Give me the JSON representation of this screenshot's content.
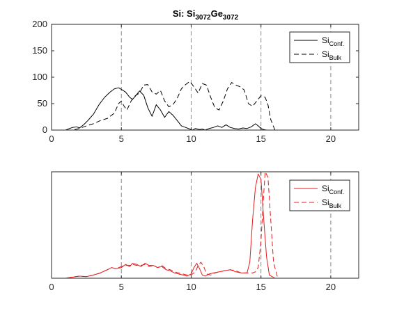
{
  "title": {
    "prefix": "Si: Si",
    "sub1": "3072",
    "mid": "Ge",
    "sub2": "3072"
  },
  "chart_data": [
    {
      "type": "line",
      "xlim": [
        0,
        22
      ],
      "ylim": [
        0,
        200
      ],
      "xticks": [
        0,
        5,
        10,
        15,
        20
      ],
      "yticks": [
        0,
        50,
        100,
        150,
        200
      ],
      "xtick_labels": [
        "0",
        "5",
        "10",
        "15",
        "20"
      ],
      "ytick_labels": [
        "0",
        "50",
        "100",
        "150",
        "200"
      ],
      "y_tick_labels_visible": true,
      "vlines": [
        5,
        10,
        15,
        20
      ],
      "legend_position": "top-right",
      "series": [
        {
          "name_main": "Si",
          "name_sub": "Conf.",
          "style": "solid",
          "color": "#000000",
          "x": [
            0,
            1.0,
            1.2,
            1.5,
            1.8,
            2.0,
            2.3,
            2.6,
            3.0,
            3.4,
            3.8,
            4.2,
            4.5,
            4.8,
            5.0,
            5.3,
            5.6,
            5.8,
            6.0,
            6.3,
            6.6,
            6.9,
            7.2,
            7.5,
            7.8,
            8.1,
            8.4,
            8.7,
            9.0,
            9.3,
            9.6,
            9.9,
            10.1,
            10.3,
            10.6,
            10.8,
            11.0,
            11.3,
            11.6,
            11.9,
            12.2,
            12.5,
            12.8,
            13.1,
            13.4,
            13.7,
            14.0,
            14.3,
            14.6,
            14.8,
            15.0,
            15.2,
            15.4,
            16.0,
            22
          ],
          "y": [
            0,
            0,
            2,
            5,
            6,
            4,
            10,
            18,
            30,
            48,
            62,
            72,
            78,
            80,
            77,
            72,
            62,
            58,
            64,
            74,
            66,
            42,
            26,
            48,
            38,
            24,
            35,
            28,
            18,
            8,
            5,
            2,
            0,
            3,
            1,
            2,
            0,
            3,
            5,
            8,
            5,
            10,
            5,
            3,
            2,
            4,
            3,
            6,
            12,
            8,
            3,
            1,
            0,
            0,
            0
          ]
        },
        {
          "name_main": "Si",
          "name_sub": "Bulk",
          "style": "dashed",
          "color": "#000000",
          "x": [
            0,
            1.5,
            2.0,
            2.5,
            3.0,
            3.5,
            4.0,
            4.5,
            4.8,
            5.0,
            5.2,
            5.4,
            5.7,
            6.0,
            6.3,
            6.6,
            6.9,
            7.2,
            7.5,
            7.8,
            8.1,
            8.4,
            8.7,
            9.0,
            9.3,
            9.6,
            9.9,
            10.2,
            10.5,
            10.8,
            11.1,
            11.4,
            11.7,
            12.0,
            12.3,
            12.6,
            12.9,
            13.2,
            13.5,
            13.8,
            14.1,
            14.4,
            14.7,
            15.0,
            15.3,
            15.5,
            15.7,
            16.0,
            22
          ],
          "y": [
            0,
            0,
            3,
            8,
            12,
            18,
            22,
            32,
            50,
            55,
            45,
            38,
            55,
            65,
            70,
            85,
            86,
            72,
            68,
            75,
            55,
            44,
            48,
            60,
            78,
            86,
            92,
            82,
            70,
            88,
            85,
            62,
            42,
            38,
            55,
            78,
            90,
            85,
            82,
            76,
            50,
            45,
            55,
            65,
            62,
            48,
            20,
            0,
            0
          ]
        }
      ]
    },
    {
      "type": "line",
      "xlim": [
        0,
        22
      ],
      "ylim": [
        0,
        1
      ],
      "xticks": [
        0,
        5,
        10,
        15,
        20
      ],
      "xtick_labels": [
        "0",
        "5",
        "10",
        "15",
        "20"
      ],
      "y_tick_labels_visible": false,
      "vlines": [
        5,
        10,
        15,
        20
      ],
      "legend_position": "top-right",
      "series": [
        {
          "name_main": "Si",
          "name_sub": "Conf.",
          "style": "solid",
          "color": "#e41a1c",
          "x": [
            0,
            1.0,
            1.5,
            2.0,
            2.5,
            3.0,
            3.5,
            4.0,
            4.3,
            4.6,
            5.0,
            5.3,
            5.6,
            5.8,
            6.1,
            6.4,
            6.7,
            7.0,
            7.3,
            7.6,
            7.9,
            8.2,
            8.5,
            8.8,
            9.1,
            9.4,
            9.7,
            10.0,
            10.2,
            10.4,
            10.6,
            10.8,
            11.0,
            11.3,
            11.6,
            12.0,
            12.4,
            12.8,
            13.2,
            13.6,
            14.0,
            14.2,
            14.4,
            14.6,
            14.8,
            15.0,
            15.2,
            15.4,
            15.6,
            16.0,
            22
          ],
          "y": [
            0,
            0,
            0.01,
            0.02,
            0.015,
            0.03,
            0.05,
            0.08,
            0.1,
            0.09,
            0.1,
            0.13,
            0.11,
            0.14,
            0.13,
            0.11,
            0.14,
            0.12,
            0.12,
            0.1,
            0.11,
            0.08,
            0.07,
            0.05,
            0.04,
            0.03,
            0.02,
            0.04,
            0.1,
            0.14,
            0.09,
            0.03,
            0.02,
            0.04,
            0.05,
            0.06,
            0.07,
            0.08,
            0.06,
            0.05,
            0.05,
            0.15,
            0.55,
            0.85,
            0.98,
            0.93,
            0.55,
            0.2,
            0.03,
            0,
            0
          ]
        },
        {
          "name_main": "Si",
          "name_sub": "Bulk",
          "style": "dashed",
          "color": "#e41a1c",
          "x": [
            0,
            1.0,
            1.5,
            2.0,
            2.5,
            3.0,
            3.5,
            4.0,
            4.3,
            4.6,
            5.0,
            5.3,
            5.6,
            5.8,
            6.1,
            6.4,
            6.7,
            7.0,
            7.3,
            7.6,
            7.9,
            8.2,
            8.5,
            8.8,
            9.1,
            9.4,
            9.7,
            10.0,
            10.3,
            10.5,
            10.7,
            10.9,
            11.1,
            11.4,
            11.7,
            12.0,
            12.4,
            12.8,
            13.2,
            13.6,
            14.0,
            14.4,
            14.6,
            14.8,
            15.0,
            15.2,
            15.3,
            15.5,
            15.7,
            15.9,
            16.2,
            22
          ],
          "y": [
            0,
            0,
            0.01,
            0.02,
            0.015,
            0.03,
            0.05,
            0.08,
            0.1,
            0.09,
            0.11,
            0.12,
            0.12,
            0.13,
            0.12,
            0.12,
            0.13,
            0.11,
            0.12,
            0.1,
            0.12,
            0.09,
            0.08,
            0.06,
            0.05,
            0.04,
            0.03,
            0.03,
            0.06,
            0.12,
            0.15,
            0.11,
            0.04,
            0.03,
            0.05,
            0.06,
            0.07,
            0.08,
            0.07,
            0.05,
            0.05,
            0.05,
            0.06,
            0.1,
            0.35,
            0.8,
            1.0,
            0.95,
            0.55,
            0.15,
            0,
            0
          ]
        }
      ]
    }
  ]
}
